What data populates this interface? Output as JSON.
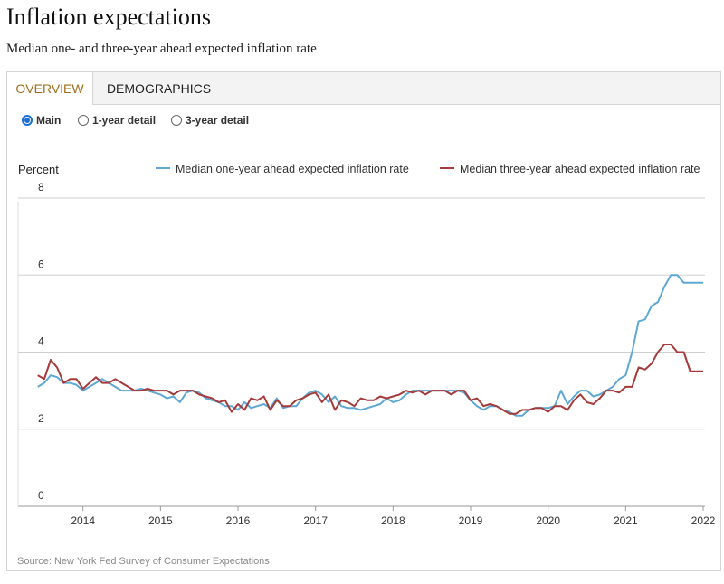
{
  "page": {
    "title": "Inflation expectations",
    "subtitle": "Median one- and three-year ahead expected inflation rate"
  },
  "tabs": [
    {
      "label": "OVERVIEW",
      "active": true
    },
    {
      "label": "DEMOGRAPHICS",
      "active": false
    }
  ],
  "radios": [
    {
      "label": "Main",
      "selected": true
    },
    {
      "label": "1-year detail",
      "selected": false
    },
    {
      "label": "3-year detail",
      "selected": false
    }
  ],
  "source": "Source: New York Fed Survey of Consumer Expectations",
  "chart_data": {
    "type": "line",
    "ylabel": "Percent",
    "ylim": [
      0,
      8
    ],
    "yticks": [
      0,
      2,
      4,
      6,
      8
    ],
    "xlim": [
      2013.42,
      2022.0
    ],
    "xticks": [
      2014,
      2015,
      2016,
      2017,
      2018,
      2019,
      2020,
      2021,
      2022
    ],
    "grid": "horizontal",
    "legend_position": "top",
    "colors": {
      "one_year": "#5ea8d3",
      "three_year": "#a53a3a"
    },
    "series": [
      {
        "name": "Median one-year ahead expected inflation rate",
        "color": "#5ea8d3",
        "x": [
          "2013-06",
          "2013-07",
          "2013-08",
          "2013-09",
          "2013-10",
          "2013-11",
          "2013-12",
          "2014-01",
          "2014-02",
          "2014-03",
          "2014-04",
          "2014-05",
          "2014-06",
          "2014-07",
          "2014-08",
          "2014-09",
          "2014-10",
          "2014-11",
          "2014-12",
          "2015-01",
          "2015-02",
          "2015-03",
          "2015-04",
          "2015-05",
          "2015-06",
          "2015-07",
          "2015-08",
          "2015-09",
          "2015-10",
          "2015-11",
          "2015-12",
          "2016-01",
          "2016-02",
          "2016-03",
          "2016-04",
          "2016-05",
          "2016-06",
          "2016-07",
          "2016-08",
          "2016-09",
          "2016-10",
          "2016-11",
          "2016-12",
          "2017-01",
          "2017-02",
          "2017-03",
          "2017-04",
          "2017-05",
          "2017-06",
          "2017-07",
          "2017-08",
          "2017-09",
          "2017-10",
          "2017-11",
          "2017-12",
          "2018-01",
          "2018-02",
          "2018-03",
          "2018-04",
          "2018-05",
          "2018-06",
          "2018-07",
          "2018-08",
          "2018-09",
          "2018-10",
          "2018-11",
          "2018-12",
          "2019-01",
          "2019-02",
          "2019-03",
          "2019-04",
          "2019-05",
          "2019-06",
          "2019-07",
          "2019-08",
          "2019-09",
          "2019-10",
          "2019-11",
          "2019-12",
          "2020-01",
          "2020-02",
          "2020-03",
          "2020-04",
          "2020-05",
          "2020-06",
          "2020-07",
          "2020-08",
          "2020-09",
          "2020-10",
          "2020-11",
          "2020-12",
          "2021-01",
          "2021-02",
          "2021-03",
          "2021-04",
          "2021-05",
          "2021-06",
          "2021-07",
          "2021-08",
          "2021-09",
          "2021-10",
          "2021-11",
          "2021-12",
          "2022-01"
        ],
        "values": [
          3.1,
          3.2,
          3.4,
          3.35,
          3.2,
          3.2,
          3.15,
          3.0,
          3.1,
          3.2,
          3.3,
          3.2,
          3.1,
          3.0,
          3.0,
          3.0,
          3.05,
          3.0,
          2.95,
          2.9,
          2.8,
          2.85,
          2.7,
          2.95,
          3.0,
          2.95,
          2.8,
          2.75,
          2.7,
          2.6,
          2.6,
          2.5,
          2.7,
          2.55,
          2.6,
          2.65,
          2.55,
          2.8,
          2.55,
          2.6,
          2.6,
          2.8,
          2.95,
          3.0,
          2.9,
          2.7,
          2.85,
          2.6,
          2.55,
          2.55,
          2.5,
          2.55,
          2.6,
          2.65,
          2.8,
          2.7,
          2.75,
          2.9,
          3.0,
          3.0,
          3.0,
          3.0,
          3.0,
          3.0,
          3.0,
          3.0,
          2.95,
          2.75,
          2.6,
          2.5,
          2.6,
          2.6,
          2.5,
          2.45,
          2.35,
          2.35,
          2.5,
          2.55,
          2.55,
          2.55,
          2.6,
          3.0,
          2.65,
          2.85,
          3.0,
          3.0,
          2.85,
          2.9,
          3.0,
          3.1,
          3.3,
          3.4,
          4.0,
          4.8,
          4.85,
          5.2,
          5.3,
          5.7,
          6.0,
          6.0,
          5.8,
          5.8,
          5.8,
          5.8
        ],
        "values_note": ""
      },
      {
        "name": "Median three-year ahead expected inflation rate",
        "color": "#a53a3a",
        "x": [
          "2013-06",
          "2013-07",
          "2013-08",
          "2013-09",
          "2013-10",
          "2013-11",
          "2013-12",
          "2014-01",
          "2014-02",
          "2014-03",
          "2014-04",
          "2014-05",
          "2014-06",
          "2014-07",
          "2014-08",
          "2014-09",
          "2014-10",
          "2014-11",
          "2014-12",
          "2015-01",
          "2015-02",
          "2015-03",
          "2015-04",
          "2015-05",
          "2015-06",
          "2015-07",
          "2015-08",
          "2015-09",
          "2015-10",
          "2015-11",
          "2015-12",
          "2016-01",
          "2016-02",
          "2016-03",
          "2016-04",
          "2016-05",
          "2016-06",
          "2016-07",
          "2016-08",
          "2016-09",
          "2016-10",
          "2016-11",
          "2016-12",
          "2017-01",
          "2017-02",
          "2017-03",
          "2017-04",
          "2017-05",
          "2017-06",
          "2017-07",
          "2017-08",
          "2017-09",
          "2017-10",
          "2017-11",
          "2017-12",
          "2018-01",
          "2018-02",
          "2018-03",
          "2018-04",
          "2018-05",
          "2018-06",
          "2018-07",
          "2018-08",
          "2018-09",
          "2018-10",
          "2018-11",
          "2018-12",
          "2019-01",
          "2019-02",
          "2019-03",
          "2019-04",
          "2019-05",
          "2019-06",
          "2019-07",
          "2019-08",
          "2019-09",
          "2019-10",
          "2019-11",
          "2019-12",
          "2020-01",
          "2020-02",
          "2020-03",
          "2020-04",
          "2020-05",
          "2020-06",
          "2020-07",
          "2020-08",
          "2020-09",
          "2020-10",
          "2020-11",
          "2020-12",
          "2021-01",
          "2021-02",
          "2021-03",
          "2021-04",
          "2021-05",
          "2021-06",
          "2021-07",
          "2021-08",
          "2021-09",
          "2021-10",
          "2021-11",
          "2021-12",
          "2022-01"
        ],
        "values": [
          3.4,
          3.3,
          3.8,
          3.6,
          3.2,
          3.3,
          3.3,
          3.05,
          3.2,
          3.35,
          3.2,
          3.2,
          3.3,
          3.2,
          3.1,
          3.0,
          3.0,
          3.05,
          3.0,
          3.0,
          3.0,
          2.9,
          3.0,
          3.0,
          3.0,
          2.9,
          2.85,
          2.8,
          2.7,
          2.75,
          2.45,
          2.65,
          2.5,
          2.8,
          2.75,
          2.85,
          2.5,
          2.75,
          2.6,
          2.6,
          2.75,
          2.8,
          2.9,
          2.95,
          2.7,
          2.9,
          2.5,
          2.75,
          2.7,
          2.6,
          2.8,
          2.75,
          2.75,
          2.85,
          2.8,
          2.85,
          2.9,
          3.0,
          2.95,
          3.0,
          2.9,
          3.0,
          3.0,
          3.0,
          2.9,
          3.0,
          3.0,
          2.75,
          2.8,
          2.6,
          2.65,
          2.6,
          2.5,
          2.4,
          2.4,
          2.5,
          2.5,
          2.55,
          2.55,
          2.45,
          2.6,
          2.6,
          2.5,
          2.75,
          2.9,
          2.7,
          2.65,
          2.8,
          3.0,
          3.0,
          2.95,
          3.1,
          3.1,
          3.6,
          3.55,
          3.7,
          4.0,
          4.2,
          4.2,
          4.0,
          4.0,
          3.5,
          3.5,
          3.5
        ],
        "values_note": ""
      }
    ]
  }
}
